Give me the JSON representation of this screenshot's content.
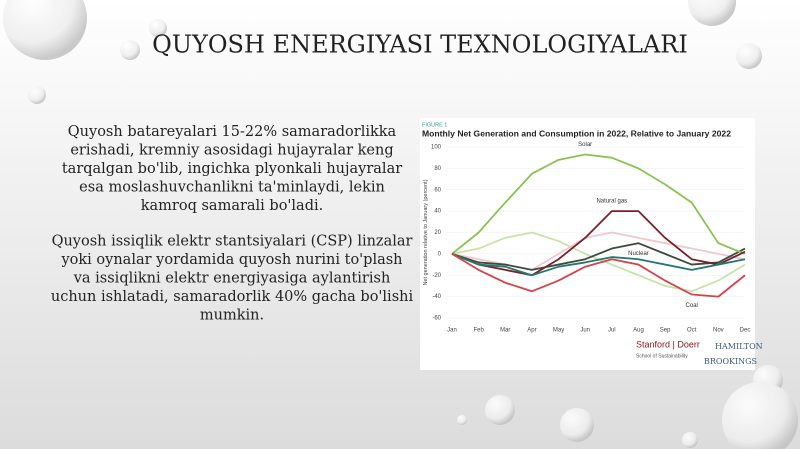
{
  "title": "QUYOSH ENERGIYASI TEXNOLOGIYALARI",
  "paragraphs": [
    [
      "Quyosh batareyalari 15-22% samaradorlikka",
      "erishadi, kremniy asosidagi hujayralar keng",
      "tarqalgan bo'lib, ingichka plyonkali hujayralar",
      "esa moslashuvchanlikni ta'minlaydi, lekin",
      "kamroq samarali bo'ladi."
    ],
    [
      "Quyosh issiqlik elektr stantsiyalari (CSP) linzalar",
      "yoki oynalar yordamida quyosh nurini to'plash",
      "va issiqlikni elektr energiyasiga aylantirish",
      "uchun ishlatadi, samaradorlik 40% gacha bo'lishi",
      "mumkin."
    ]
  ],
  "chart_data": {
    "type": "line",
    "figure_label": "FIGURE 1",
    "title": "Monthly Net Generation and Consumption in 2022, Relative to January 2022",
    "y_label": "Net generation relative to January (percent)",
    "categories": [
      "Jan",
      "Feb",
      "Mar",
      "Apr",
      "May",
      "Jun",
      "Jul",
      "Aug",
      "Sep",
      "Oct",
      "Nov",
      "Dec"
    ],
    "ylim": [
      -60,
      100
    ],
    "yticks": [
      -60,
      -40,
      -20,
      0,
      20,
      40,
      60,
      80,
      100
    ],
    "series": [
      {
        "color": "#c8e3a6",
        "values": [
          0,
          5,
          15,
          20,
          12,
          0,
          -10,
          -20,
          -30,
          -35,
          -25,
          -10
        ]
      },
      {
        "color": "#f2c6cf",
        "values": [
          0,
          -5,
          -10,
          -15,
          0,
          15,
          20,
          15,
          10,
          5,
          0,
          -5
        ]
      },
      {
        "color": "#3f4a3f",
        "values": [
          0,
          -8,
          -10,
          -15,
          -10,
          -5,
          5,
          10,
          0,
          -10,
          -8,
          5
        ]
      },
      {
        "name": "Solar",
        "color": "#8cc152",
        "values": [
          0,
          20,
          48,
          75,
          88,
          93,
          90,
          80,
          65,
          48,
          10,
          0
        ]
      },
      {
        "name": "Natural gas",
        "color": "#7b1f2a",
        "values": [
          0,
          -10,
          -15,
          -20,
          -5,
          15,
          40,
          40,
          15,
          -5,
          -10,
          2
        ]
      },
      {
        "name": "Nuclear",
        "color": "#1f7a70",
        "values": [
          0,
          -10,
          -12,
          -20,
          -12,
          -8,
          -3,
          -5,
          -10,
          -15,
          -10,
          -5
        ]
      },
      {
        "name": "Coal",
        "color": "#d9414a",
        "values": [
          0,
          -15,
          -27,
          -35,
          -25,
          -12,
          -5,
          -10,
          -25,
          -38,
          -40,
          -20
        ]
      }
    ]
  },
  "logos": {
    "stanford": "Stanford | Doerr",
    "stanford_sub": "School of Sustainability",
    "hamilton": "HAMILTON",
    "brookings": "BROOKINGS"
  }
}
